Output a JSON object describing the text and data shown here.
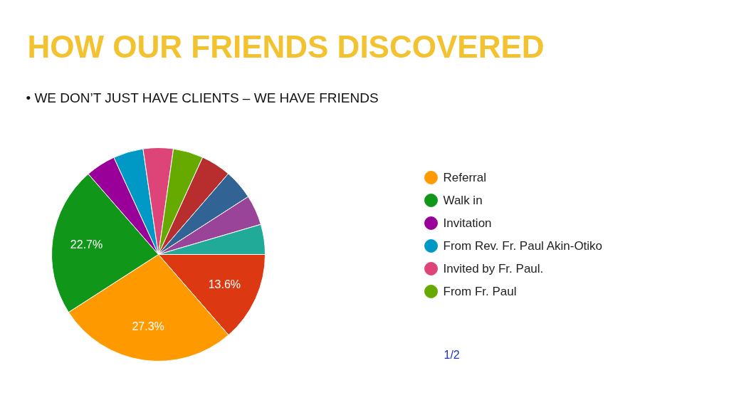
{
  "chart_data": {
    "type": "pie",
    "title": "HOW OUR FRIENDS DISCOVERED",
    "subtitle": "•  WE DON’T JUST HAVE CLIENTS – WE HAVE FRIENDS",
    "categories": [
      null,
      "Referral",
      "Walk in",
      "Invitation",
      "From Rev. Fr. Paul Akin-Otiko",
      "Invited by Fr. Paul.",
      "From Fr. Paul",
      null,
      null,
      null,
      null
    ],
    "values": [
      13.6,
      27.3,
      22.7,
      4.55,
      4.55,
      4.55,
      4.55,
      4.55,
      4.55,
      4.55,
      4.55
    ],
    "colors": [
      "#dc3912",
      "#ff9900",
      "#109618",
      "#990099",
      "#0099c6",
      "#dd4477",
      "#66aa00",
      "#b82e2e",
      "#316395",
      "#994499",
      "#22aa99"
    ],
    "value_labels": [
      "13.6%",
      "27.3%",
      "22.7%",
      null,
      null,
      null,
      null,
      null,
      null,
      null,
      null
    ],
    "legend": "right",
    "annotations": [
      "1/2"
    ]
  }
}
